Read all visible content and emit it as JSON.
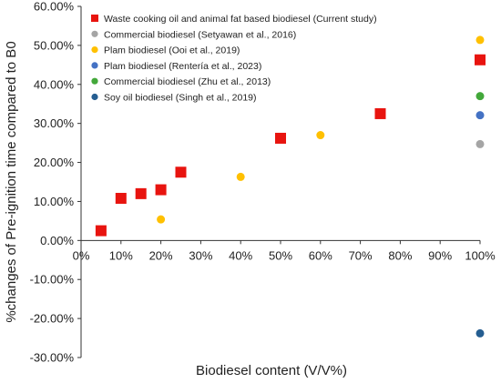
{
  "chart_data": {
    "type": "scatter",
    "xlabel": "Biodiesel content (V/V%)",
    "ylabel": "%changes of Pre-ignition time compared to B0",
    "xlim": [
      0,
      100
    ],
    "ylim": [
      -30,
      60
    ],
    "x_ticks": [
      0,
      10,
      20,
      30,
      40,
      50,
      60,
      70,
      80,
      90,
      100
    ],
    "x_tick_labels": [
      "0%",
      "10%",
      "20%",
      "30%",
      "40%",
      "50%",
      "60%",
      "70%",
      "80%",
      "90%",
      "100%"
    ],
    "y_ticks": [
      60,
      50,
      40,
      30,
      20,
      10,
      0,
      -10,
      -20,
      -30
    ],
    "y_tick_labels": [
      "60.00%",
      "50.00%",
      "40.00%",
      "30.00%",
      "20.00%",
      "10.00%",
      "0.00%",
      "-10.00%",
      "-20.00%",
      "-30.00%"
    ],
    "grid": false,
    "legend_position": "top-left",
    "series": [
      {
        "name": "Waste cooking oil and animal fat based biodiesel (Current study)",
        "color": "#e8140f",
        "marker": "square",
        "points": [
          {
            "x": 5,
            "y": 2.5
          },
          {
            "x": 10,
            "y": 10.8
          },
          {
            "x": 15,
            "y": 12.0
          },
          {
            "x": 20,
            "y": 13.0
          },
          {
            "x": 25,
            "y": 17.5
          },
          {
            "x": 50,
            "y": 26.2
          },
          {
            "x": 75,
            "y": 32.5
          },
          {
            "x": 100,
            "y": 46.3
          }
        ]
      },
      {
        "name": "Commercial biodiesel (Setyawan et al., 2016)",
        "color": "#a5a5a5",
        "marker": "circle",
        "points": [
          {
            "x": 100,
            "y": 24.7
          }
        ]
      },
      {
        "name": "Plam biodiesel (Ooi et al., 2019)",
        "color": "#ffc000",
        "marker": "circle",
        "points": [
          {
            "x": 20,
            "y": 5.4
          },
          {
            "x": 40,
            "y": 16.3
          },
          {
            "x": 60,
            "y": 27.0
          },
          {
            "x": 100,
            "y": 51.4
          }
        ]
      },
      {
        "name": "Plam biodiesel (Rentería et al., 2023)",
        "color": "#4472c4",
        "marker": "circle",
        "points": [
          {
            "x": 100,
            "y": 32.1
          }
        ]
      },
      {
        "name": "Commercial biodiesel (Zhu et al., 2013)",
        "color": "#43a83a",
        "marker": "circle",
        "points": [
          {
            "x": 100,
            "y": 37.0
          }
        ]
      },
      {
        "name": "Soy oil biodiesel (Singh et al., 2019)",
        "color": "#255e91",
        "marker": "circle",
        "points": [
          {
            "x": 100,
            "y": -23.8
          }
        ]
      }
    ]
  }
}
